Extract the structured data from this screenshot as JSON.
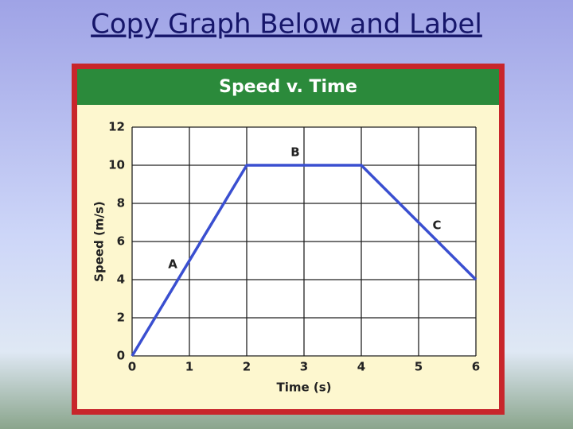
{
  "slide_title": "Copy Graph Below and Label",
  "chart_data": {
    "type": "line",
    "title": "Speed v. Time",
    "xlabel": "Time (s)",
    "ylabel": "Speed (m/s)",
    "x": [
      0,
      2,
      4,
      6
    ],
    "values": [
      0,
      10,
      10,
      4
    ],
    "color": "#3a4fd0",
    "xlim": [
      0,
      6
    ],
    "xticks": [
      0,
      1,
      2,
      3,
      4,
      5,
      6
    ],
    "ylim": [
      0,
      12
    ],
    "yticks": [
      0,
      2,
      4,
      6,
      8,
      10,
      12
    ],
    "grid": true,
    "annotations": [
      "A",
      "B",
      "C"
    ]
  }
}
